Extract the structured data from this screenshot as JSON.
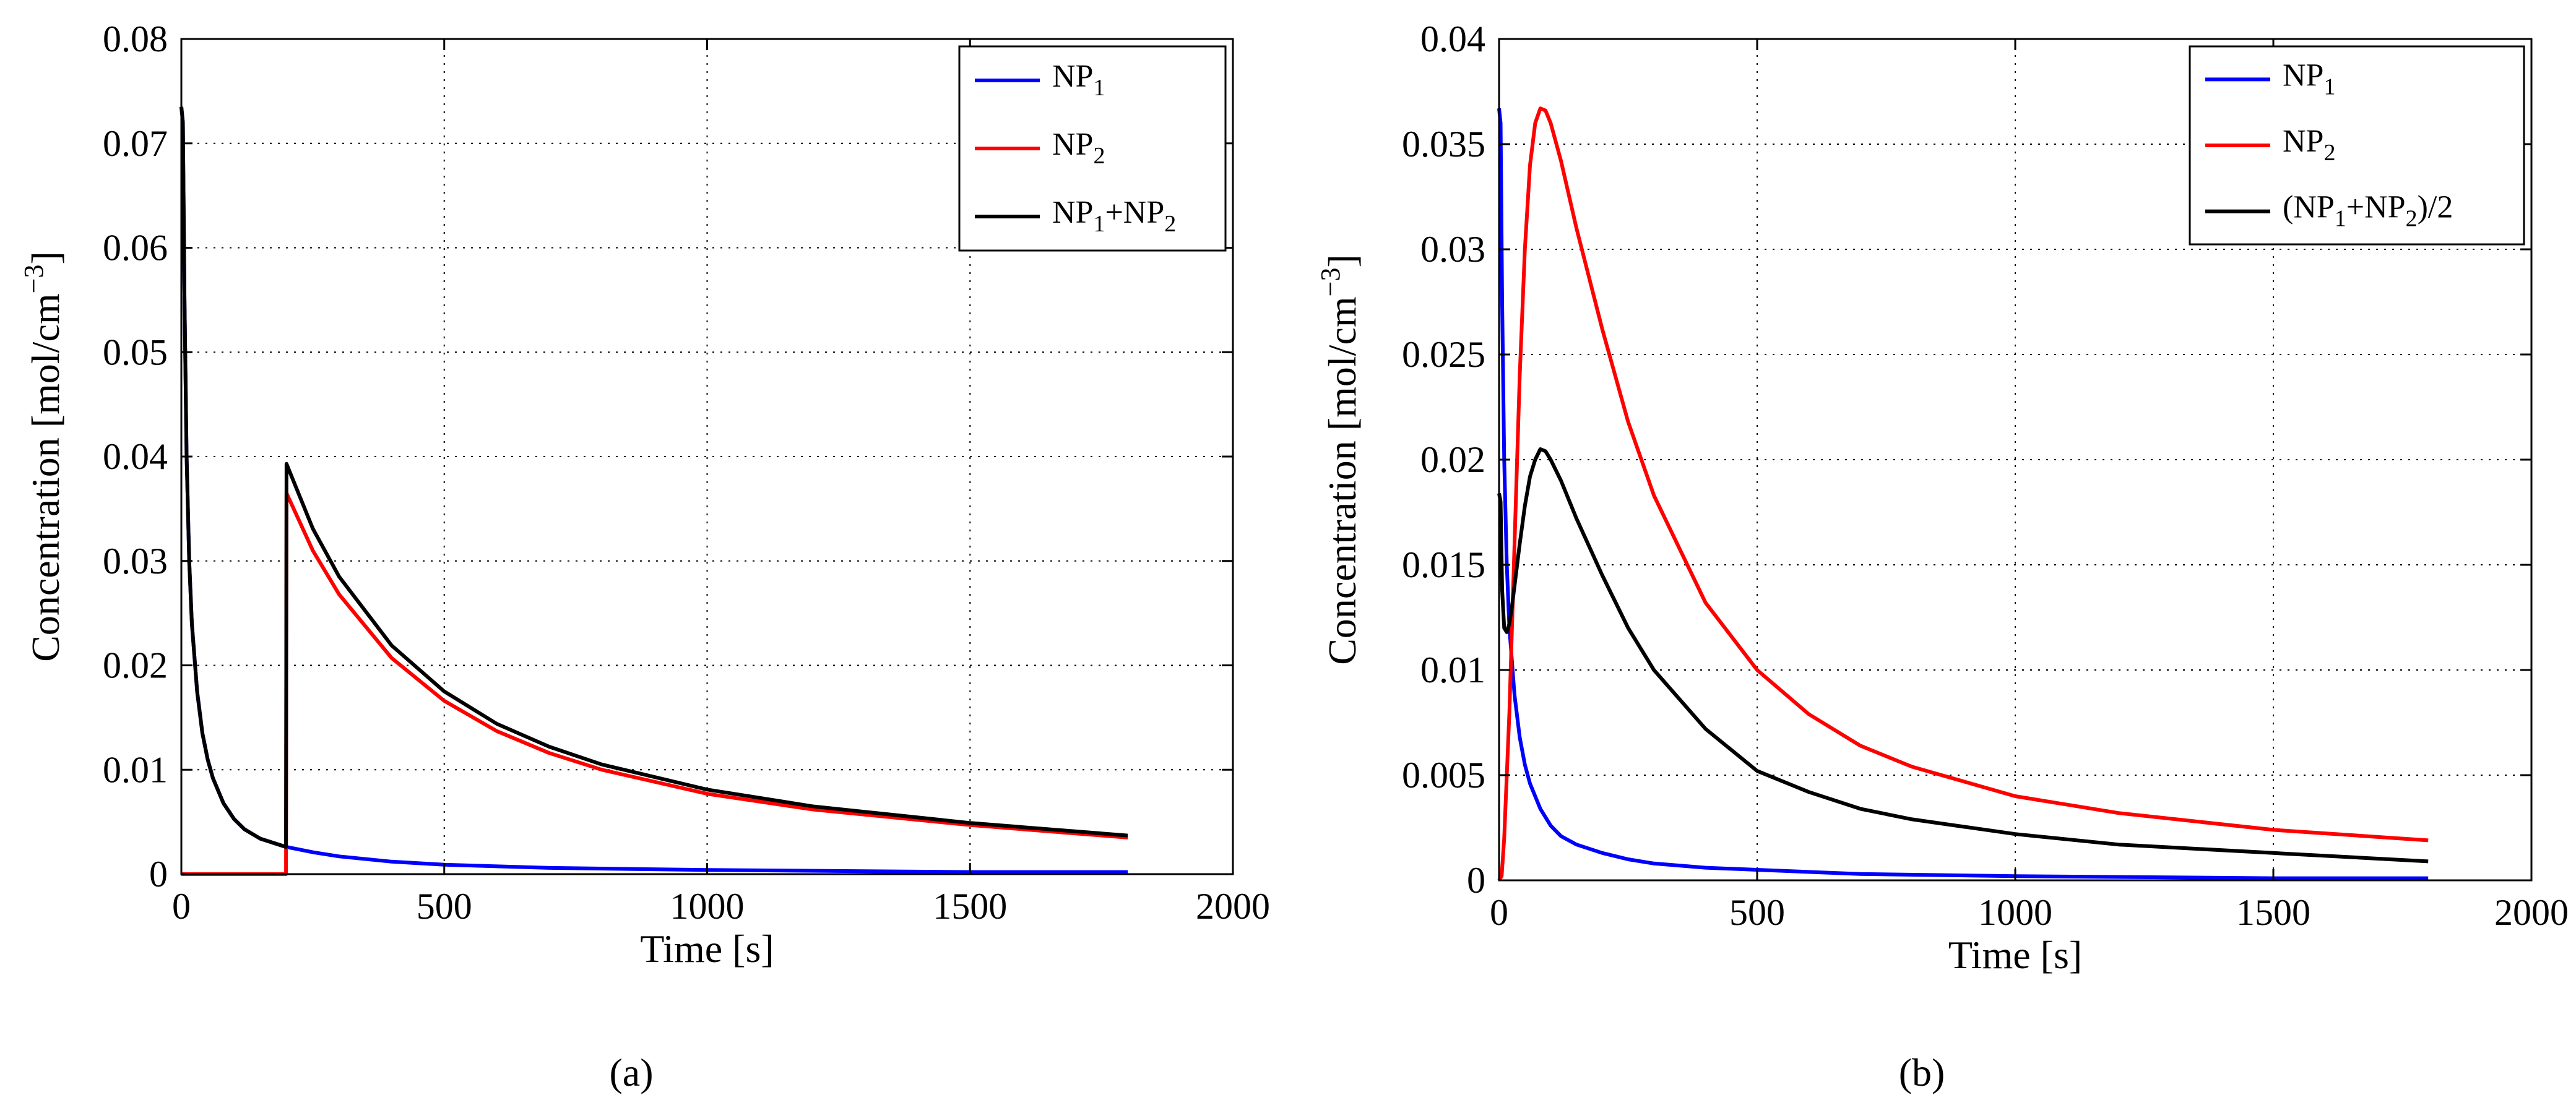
{
  "chart_data": [
    {
      "type": "line",
      "caption": "(a)",
      "xlabel": "Time [s]",
      "ylabel": "Concentration [mol/cm",
      "ylabel_sup": "−3",
      "ylabel_end": "]",
      "xlim": [
        0,
        2000
      ],
      "ylim": [
        0,
        0.08
      ],
      "xticks": [
        0,
        500,
        1000,
        1500,
        2000
      ],
      "xtick_labels": [
        "0",
        "500",
        "1000",
        "1500",
        "2000"
      ],
      "yticks": [
        0,
        0.01,
        0.02,
        0.03,
        0.04,
        0.05,
        0.06,
        0.07,
        0.08
      ],
      "ytick_labels": [
        "0",
        "0.01",
        "0.02",
        "0.03",
        "0.04",
        "0.05",
        "0.06",
        "0.07",
        "0.08"
      ],
      "grid": true,
      "legend_position": "top-right",
      "series": [
        {
          "name": "NP1",
          "label_parts": [
            "NP",
            "1"
          ],
          "color": "#0000ff",
          "x": [
            0,
            3,
            6,
            10,
            15,
            20,
            30,
            40,
            50,
            60,
            80,
            100,
            120,
            150,
            200,
            250,
            300,
            400,
            500,
            700,
            1000,
            1500,
            1800
          ],
          "y": [
            0.0735,
            0.072,
            0.055,
            0.04,
            0.03,
            0.024,
            0.0175,
            0.0135,
            0.011,
            0.0092,
            0.0068,
            0.0053,
            0.0043,
            0.0034,
            0.0026,
            0.0021,
            0.0017,
            0.0012,
            0.0009,
            0.0006,
            0.0004,
            0.0002,
            0.0002
          ]
        },
        {
          "name": "NP2",
          "label_parts": [
            "NP",
            "2"
          ],
          "color": "#ff0000",
          "x": [
            0,
            199,
            200,
            250,
            300,
            400,
            500,
            600,
            700,
            800,
            1000,
            1200,
            1500,
            1800
          ],
          "y": [
            0,
            0,
            0.0365,
            0.031,
            0.0268,
            0.0207,
            0.0166,
            0.0137,
            0.0116,
            0.01,
            0.0077,
            0.0062,
            0.0047,
            0.0035
          ]
        },
        {
          "name": "NP1+NP2",
          "label_parts": [
            "NP",
            "1",
            "+NP",
            "2"
          ],
          "color": "#000000",
          "x": [
            0,
            3,
            6,
            10,
            15,
            20,
            30,
            40,
            50,
            60,
            80,
            100,
            120,
            150,
            199,
            200,
            250,
            300,
            400,
            500,
            600,
            700,
            800,
            1000,
            1200,
            1500,
            1800
          ],
          "y": [
            0.0735,
            0.072,
            0.055,
            0.04,
            0.03,
            0.024,
            0.0175,
            0.0135,
            0.011,
            0.0092,
            0.0068,
            0.0053,
            0.0043,
            0.0034,
            0.0026,
            0.0393,
            0.0331,
            0.0285,
            0.0219,
            0.0175,
            0.0144,
            0.0122,
            0.0105,
            0.0081,
            0.0065,
            0.0049,
            0.0037
          ]
        }
      ]
    },
    {
      "type": "line",
      "caption": "(b)",
      "xlabel": "Time [s]",
      "ylabel": "Concentration [mol/cm",
      "ylabel_sup": "−3",
      "ylabel_end": "]",
      "xlim": [
        0,
        2000
      ],
      "ylim": [
        0,
        0.04
      ],
      "xticks": [
        0,
        500,
        1000,
        1500,
        2000
      ],
      "xtick_labels": [
        "0",
        "500",
        "1000",
        "1500",
        "2000"
      ],
      "yticks": [
        0,
        0.005,
        0.01,
        0.015,
        0.02,
        0.025,
        0.03,
        0.035,
        0.04
      ],
      "ytick_labels": [
        "0",
        "0.005",
        "0.01",
        "0.015",
        "0.02",
        "0.025",
        "0.03",
        "0.035",
        "0.04"
      ],
      "grid": true,
      "legend_position": "top-right",
      "series": [
        {
          "name": "NP1",
          "label_parts": [
            "NP",
            "1"
          ],
          "color": "#0000ff",
          "x": [
            0,
            3,
            6,
            10,
            15,
            20,
            30,
            40,
            50,
            60,
            80,
            100,
            120,
            150,
            200,
            250,
            300,
            400,
            500,
            700,
            1000,
            1500,
            1800
          ],
          "y": [
            0.0367,
            0.036,
            0.0275,
            0.02,
            0.015,
            0.012,
            0.0088,
            0.0068,
            0.0055,
            0.0046,
            0.0034,
            0.0026,
            0.0021,
            0.0017,
            0.0013,
            0.001,
            0.0008,
            0.0006,
            0.0005,
            0.0003,
            0.0002,
            0.0001,
            0.0001
          ]
        },
        {
          "name": "NP2",
          "label_parts": [
            "NP",
            "2"
          ],
          "color": "#ff0000",
          "x": [
            0,
            5,
            10,
            20,
            30,
            40,
            50,
            60,
            70,
            80,
            90,
            100,
            120,
            150,
            200,
            250,
            300,
            400,
            500,
            600,
            700,
            800,
            1000,
            1200,
            1500,
            1800
          ],
          "y": [
            0,
            0.0002,
            0.002,
            0.008,
            0.016,
            0.024,
            0.03,
            0.034,
            0.036,
            0.0367,
            0.0366,
            0.036,
            0.0342,
            0.031,
            0.0262,
            0.0218,
            0.0183,
            0.0132,
            0.01,
            0.0079,
            0.0064,
            0.0054,
            0.004,
            0.0032,
            0.0024,
            0.0019
          ]
        },
        {
          "name": "(NP1+NP2)/2",
          "label_parts": [
            "(NP",
            "1",
            "+NP",
            "2",
            ")/2"
          ],
          "color": "#000000",
          "x": [
            0,
            3,
            6,
            10,
            15,
            20,
            25,
            30,
            40,
            50,
            60,
            70,
            80,
            90,
            100,
            120,
            150,
            200,
            250,
            300,
            400,
            500,
            600,
            700,
            800,
            1000,
            1200,
            1500,
            1800
          ],
          "y": [
            0.0184,
            0.018,
            0.0138,
            0.012,
            0.0118,
            0.0122,
            0.013,
            0.014,
            0.016,
            0.0178,
            0.0192,
            0.02,
            0.0205,
            0.0204,
            0.02,
            0.019,
            0.0172,
            0.0145,
            0.012,
            0.01,
            0.0072,
            0.0052,
            0.0042,
            0.0034,
            0.0029,
            0.0022,
            0.0017,
            0.0013,
            0.0009
          ]
        }
      ]
    }
  ]
}
